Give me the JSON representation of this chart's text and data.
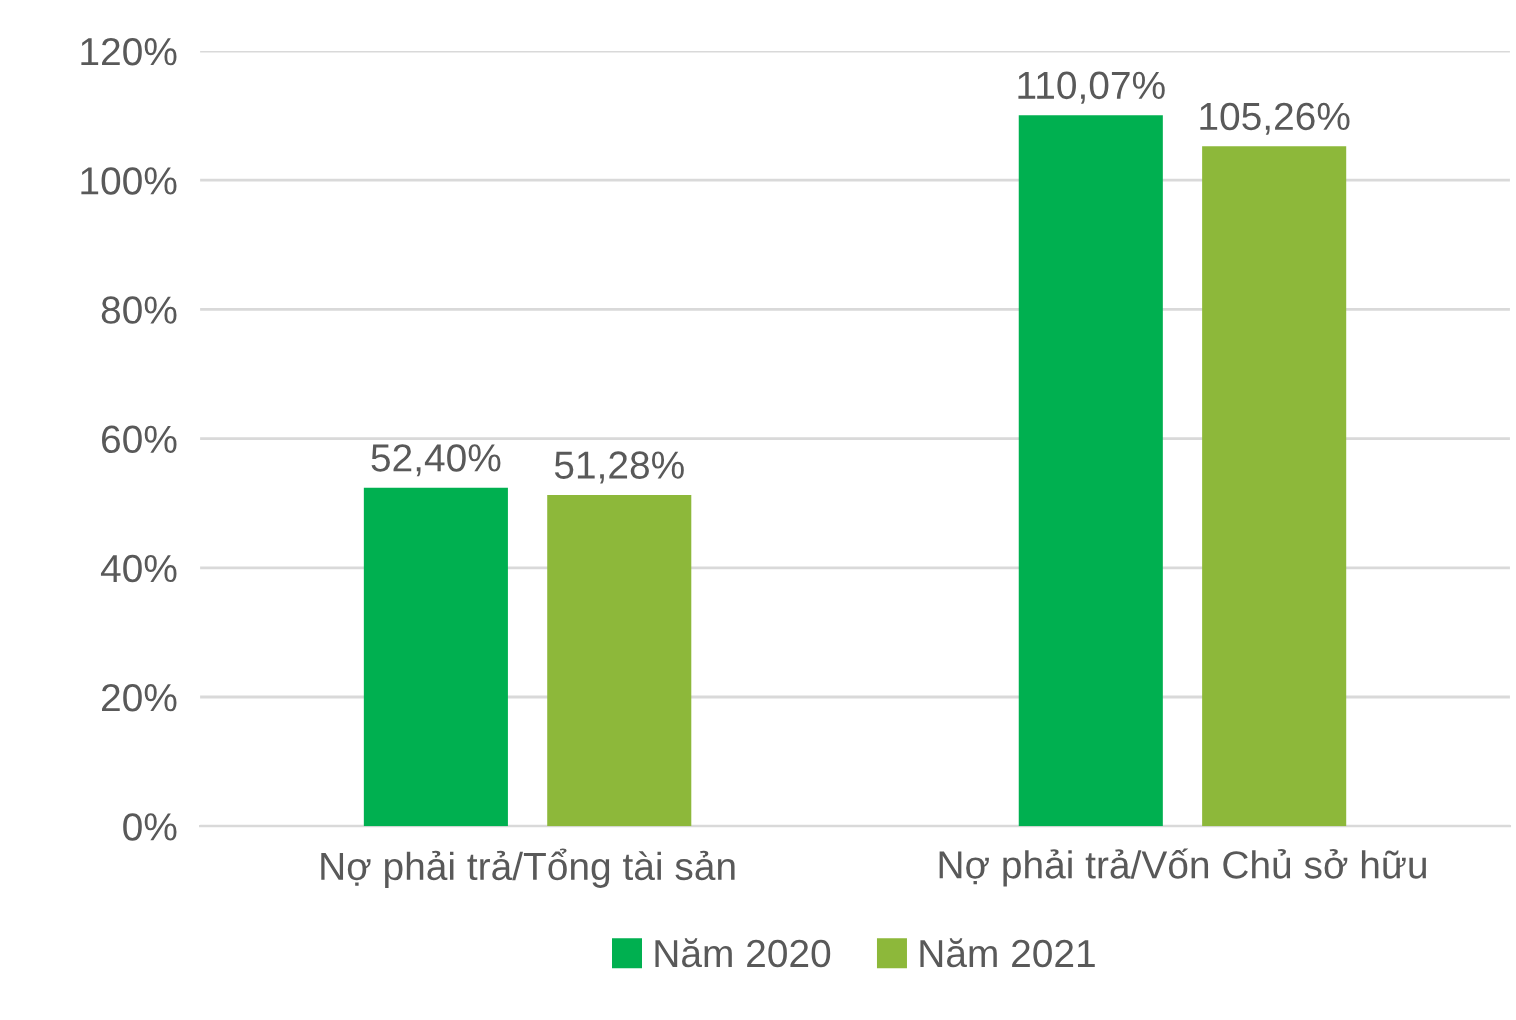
{
  "chart_data": {
    "type": "bar",
    "categories": [
      "Nợ phải trả/Tổng tài sản",
      "Nợ phải trả/Vốn Chủ sở hữu"
    ],
    "series": [
      {
        "name": "Năm 2020",
        "color": "#00b050",
        "values": [
          52.4,
          110.07
        ],
        "value_labels": [
          "52,40%",
          "110,07%"
        ]
      },
      {
        "name": "Năm 2021",
        "color": "#8db83a",
        "values": [
          51.28,
          105.26
        ],
        "value_labels": [
          "51,28%",
          "105,26%"
        ]
      }
    ],
    "ylim": [
      0,
      120
    ],
    "yticks": [
      {
        "value": 0,
        "label": "0%"
      },
      {
        "value": 20,
        "label": "20%"
      },
      {
        "value": 40,
        "label": "40%"
      },
      {
        "value": 60,
        "label": "60%"
      },
      {
        "value": 80,
        "label": "80%"
      },
      {
        "value": 100,
        "label": "100%"
      },
      {
        "value": 120,
        "label": "120%"
      }
    ],
    "grid": "y",
    "legend": "bottom"
  }
}
